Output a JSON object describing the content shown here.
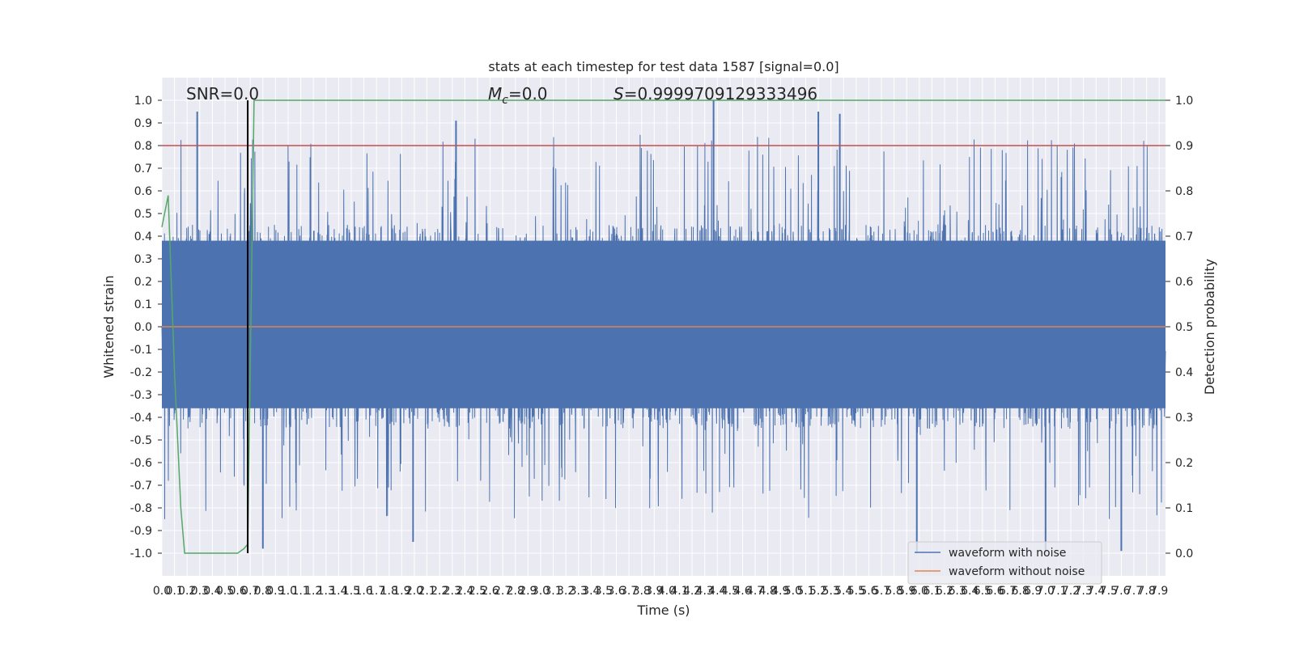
{
  "chart_data": {
    "type": "line",
    "title": "stats at each timestep for test data 1587 [signal=0.0]",
    "xlabel": "Time (s)",
    "ylabel": "Whitened strain",
    "ylabel_right": "Detection probability",
    "xlim": [
      0.0,
      7.95
    ],
    "ylim": [
      -1.1,
      1.1
    ],
    "ylim_right": [
      -0.05,
      1.05
    ],
    "x_ticks": [
      0.0,
      0.1,
      0.2,
      0.3,
      0.4,
      0.5,
      0.6,
      0.7,
      0.8,
      0.9,
      1.0,
      1.1,
      1.2,
      1.3,
      1.4,
      1.5,
      1.6,
      1.7,
      1.8,
      1.9,
      2.0,
      2.1,
      2.2,
      2.3,
      2.4,
      2.5,
      2.6,
      2.7,
      2.8,
      2.9,
      3.0,
      3.1,
      3.2,
      3.3,
      3.4,
      3.5,
      3.6,
      3.7,
      3.8,
      3.9,
      4.0,
      4.1,
      4.2,
      4.3,
      4.4,
      4.5,
      4.6,
      4.7,
      4.8,
      4.9,
      5.0,
      5.1,
      5.2,
      5.3,
      5.4,
      5.5,
      5.6,
      5.7,
      5.8,
      5.9,
      6.0,
      6.1,
      6.2,
      6.3,
      6.4,
      6.5,
      6.6,
      6.7,
      6.8,
      6.9,
      7.0,
      7.1,
      7.2,
      7.3,
      7.4,
      7.5,
      7.6,
      7.7,
      7.8,
      7.9
    ],
    "y_ticks": [
      -1.0,
      -0.9,
      -0.8,
      -0.7,
      -0.6,
      -0.5,
      -0.4,
      -0.3,
      -0.2,
      -0.1,
      0.0,
      0.1,
      0.2,
      0.3,
      0.4,
      0.5,
      0.6,
      0.7,
      0.8,
      0.9,
      1.0
    ],
    "y_ticks_right": [
      0.0,
      0.1,
      0.2,
      0.3,
      0.4,
      0.5,
      0.6,
      0.7,
      0.8,
      0.9,
      1.0
    ],
    "grid": true,
    "legend_position": "bottom-right",
    "annotations": {
      "snr": "SNR=0.0",
      "mc": "M_c=0.0",
      "mc_symbol": "M",
      "mc_subscript": "c",
      "mc_value": "=0.0",
      "s": "S=0.9999709129333496",
      "s_symbol": "S",
      "s_value": "=0.9999709129333496"
    },
    "series": [
      {
        "name": "waveform with noise",
        "color": "#4c72b0",
        "description_type": "dense noise",
        "envelope_peaks": [
          {
            "x": 0.28,
            "y": 0.95
          },
          {
            "x": 2.33,
            "y": 0.91
          },
          {
            "x": 4.37,
            "y": 1.0
          },
          {
            "x": 5.2,
            "y": 0.95
          },
          {
            "x": 5.37,
            "y": 0.94
          },
          {
            "x": 5.98,
            "y": -1.0
          },
          {
            "x": 7.0,
            "y": -1.0
          },
          {
            "x": 7.6,
            "y": -0.99
          },
          {
            "x": 0.8,
            "y": -0.98
          },
          {
            "x": 1.99,
            "y": -0.95
          }
        ]
      },
      {
        "name": "waveform without noise",
        "color": "#dd8452",
        "values_constant": 0.0
      },
      {
        "name": "detection probability",
        "color": "#55a868",
        "axis": "right",
        "x": [
          0.0,
          0.05,
          0.1,
          0.15,
          0.18,
          0.3,
          0.45,
          0.6,
          0.65,
          0.68,
          0.73,
          7.95
        ],
        "y": [
          0.72,
          0.79,
          0.4,
          0.1,
          0.0,
          0.0,
          0.0,
          0.0,
          0.01,
          0.02,
          1.0,
          1.0
        ]
      }
    ],
    "threshold_line": {
      "axis": "right",
      "y": 0.9,
      "color": "#c44e52"
    },
    "marker_line": {
      "x": 0.68,
      "y_from": -1.0,
      "y_to": 1.0,
      "color": "#000000"
    }
  }
}
